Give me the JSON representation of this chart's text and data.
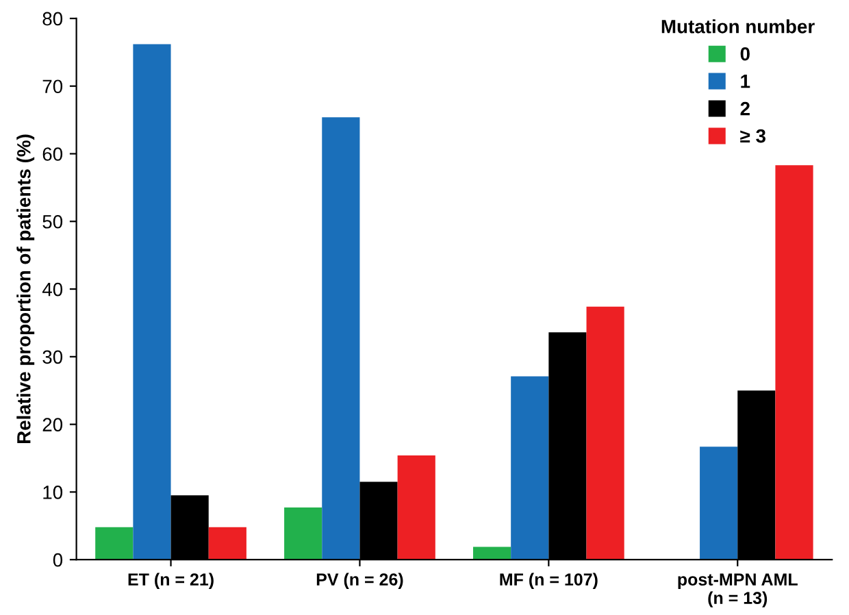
{
  "chart_data": {
    "type": "bar",
    "ylabel": "Relative proportion of patients (%)",
    "legend_title": "Mutation number",
    "categories": [
      "ET (n = 21)",
      "PV (n = 26)",
      "MF (n = 107)",
      "post-MPN AML\n(n = 13)"
    ],
    "series": [
      {
        "name": "0",
        "color": "#22b14c",
        "values": [
          4.8,
          7.7,
          1.9,
          0
        ]
      },
      {
        "name": "1",
        "color": "#1a6fba",
        "values": [
          76.2,
          65.4,
          27.1,
          16.7
        ]
      },
      {
        "name": "2",
        "color": "#000000",
        "values": [
          9.5,
          11.5,
          33.6,
          25.0
        ]
      },
      {
        "name": "≥ 3",
        "color": "#ed2024",
        "values": [
          4.8,
          15.4,
          37.4,
          58.3
        ]
      }
    ],
    "ylim": [
      0,
      80
    ],
    "yticks": [
      0,
      10,
      20,
      30,
      40,
      50,
      60,
      70,
      80
    ],
    "grid": false,
    "legend": "top right"
  }
}
